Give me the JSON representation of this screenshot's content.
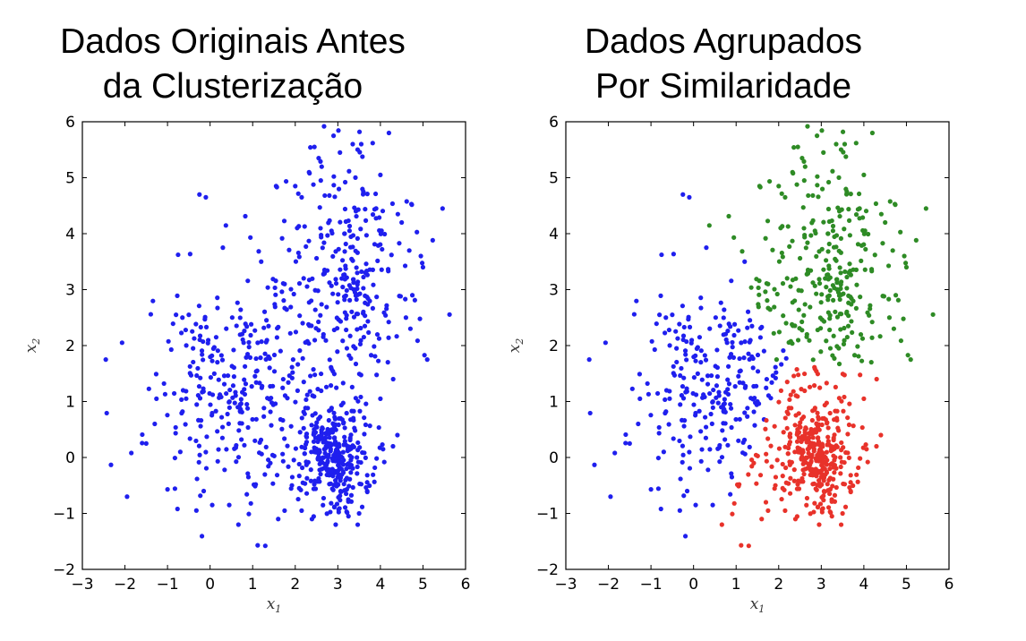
{
  "chart_data": [
    {
      "type": "scatter",
      "title": "Dados Originais Antes da Clusterização",
      "title_lines": [
        "Dados Originais Antes",
        "da Clusterização"
      ],
      "xlabel": "x",
      "xlabel_sub": "1",
      "ylabel": "x",
      "ylabel_sub": "2",
      "xlim": [
        -3,
        6
      ],
      "ylim": [
        -2,
        6
      ],
      "xticks": [
        -3,
        -2,
        -1,
        0,
        1,
        2,
        3,
        4,
        5,
        6
      ],
      "xtick_labels": [
        "−3",
        "−2",
        "−1",
        "0",
        "1",
        "2",
        "3",
        "4",
        "5",
        "6"
      ],
      "yticks": [
        -2,
        -1,
        0,
        1,
        2,
        3,
        4,
        5,
        6
      ],
      "ytick_labels": [
        "−2",
        "−1",
        "0",
        "1",
        "2",
        "3",
        "4",
        "5",
        "6"
      ],
      "grid": false,
      "point_color": "#1f1fee",
      "approx_point_count": 900,
      "series": [
        {
          "color": "#1f1fee",
          "points": [
            [
              -2.45,
              1.75
            ],
            [
              -1.95,
              -0.7
            ],
            [
              -1.85,
              0.08
            ],
            [
              -1.5,
              0.25
            ],
            [
              -1.0,
              -0.57
            ],
            [
              -0.8,
              2.55
            ],
            [
              -0.65,
              2.5
            ],
            [
              -0.5,
              2.55
            ],
            [
              -0.25,
              4.7
            ],
            [
              -0.1,
              4.65
            ],
            [
              0.3,
              3.75
            ],
            [
              1.2,
              3.5
            ],
            [
              1.55,
              4.85
            ],
            [
              2.0,
              4.85
            ],
            [
              2.45,
              5.55
            ],
            [
              2.55,
              5.35
            ],
            [
              2.9,
              5.75
            ],
            [
              3.35,
              5.6
            ],
            [
              3.55,
              5.6
            ],
            [
              3.6,
              4.75
            ],
            [
              4.0,
              5.05
            ],
            [
              4.2,
              5.8
            ],
            [
              4.5,
              4.2
            ],
            [
              4.95,
              3.6
            ],
            [
              5.0,
              3.4
            ],
            [
              5.1,
              1.75
            ],
            [
              4.6,
              2.5
            ],
            [
              4.75,
              2.9
            ],
            [
              4.4,
              0.4
            ],
            [
              1.6,
              -1.1
            ],
            [
              1.75,
              -0.95
            ],
            [
              2.95,
              -1.2
            ],
            [
              3.25,
              -1.05
            ],
            [
              3.5,
              -1.0
            ],
            [
              2.15,
              -0.95
            ],
            [
              0.45,
              -0.85
            ],
            [
              0.05,
              -0.85
            ],
            [
              -0.15,
              -0.6
            ],
            [
              0.9,
              -0.35
            ],
            [
              4.3,
              1.4
            ],
            [
              1.95,
              1.75
            ],
            [
              2.2,
              1.35
            ],
            [
              4.0,
              1.05
            ],
            [
              -0.7,
              0.1
            ],
            [
              -1.3,
              0.6
            ],
            [
              -0.4,
              1.95
            ],
            [
              1.75,
              3.1
            ],
            [
              2.6,
              4.95
            ],
            [
              3.05,
              5.45
            ],
            [
              3.9,
              4.45
            ]
          ]
        }
      ]
    },
    {
      "type": "scatter",
      "title": "Dados Agrupados Por Similaridade",
      "title_lines": [
        "Dados Agrupados",
        "Por Similaridade"
      ],
      "xlabel": "x",
      "xlabel_sub": "1",
      "ylabel": "x",
      "ylabel_sub": "2",
      "xlim": [
        -3,
        6
      ],
      "ylim": [
        -2,
        6
      ],
      "xticks": [
        -3,
        -2,
        -1,
        0,
        1,
        2,
        3,
        4,
        5,
        6
      ],
      "xtick_labels": [
        "−3",
        "−2",
        "−1",
        "0",
        "1",
        "2",
        "3",
        "4",
        "5",
        "6"
      ],
      "yticks": [
        -2,
        -1,
        0,
        1,
        2,
        3,
        4,
        5,
        6
      ],
      "ytick_labels": [
        "−2",
        "−1",
        "0",
        "1",
        "2",
        "3",
        "4",
        "5",
        "6"
      ],
      "grid": false,
      "clusters": [
        {
          "color": "#1f1fee",
          "center": [
            0.5,
            1.2
          ],
          "approx_count": 300,
          "points": [
            [
              -2.45,
              1.75
            ],
            [
              -1.95,
              -0.7
            ],
            [
              -1.85,
              0.08
            ],
            [
              -1.5,
              0.25
            ],
            [
              -1.0,
              -0.57
            ],
            [
              -0.8,
              2.55
            ],
            [
              -0.65,
              2.5
            ],
            [
              -0.5,
              2.55
            ],
            [
              -0.25,
              4.7
            ],
            [
              -0.1,
              4.65
            ],
            [
              0.3,
              3.75
            ],
            [
              1.2,
              3.5
            ],
            [
              0.45,
              -0.85
            ],
            [
              0.05,
              -0.85
            ],
            [
              -0.15,
              -0.6
            ],
            [
              0.9,
              -0.35
            ],
            [
              -0.7,
              0.1
            ],
            [
              -1.3,
              0.6
            ],
            [
              -0.4,
              1.95
            ],
            [
              1.5,
              1.0
            ],
            [
              1.2,
              0.8
            ]
          ]
        },
        {
          "color": "#2e8b25",
          "center": [
            3.3,
            3.2
          ],
          "approx_count": 300,
          "points": [
            [
              1.55,
              4.85
            ],
            [
              2.0,
              4.85
            ],
            [
              2.45,
              5.55
            ],
            [
              2.55,
              5.35
            ],
            [
              2.9,
              5.75
            ],
            [
              3.35,
              5.6
            ],
            [
              3.55,
              5.6
            ],
            [
              3.6,
              4.75
            ],
            [
              4.0,
              5.05
            ],
            [
              4.2,
              5.8
            ],
            [
              4.5,
              4.2
            ],
            [
              4.95,
              3.6
            ],
            [
              5.0,
              3.4
            ],
            [
              5.1,
              1.75
            ],
            [
              4.6,
              2.5
            ],
            [
              4.75,
              2.9
            ],
            [
              1.75,
              3.1
            ],
            [
              2.6,
              4.95
            ],
            [
              3.05,
              5.45
            ],
            [
              3.9,
              4.45
            ],
            [
              1.95,
              1.75
            ]
          ]
        },
        {
          "color": "#e8322a",
          "center": [
            2.9,
            0.1
          ],
          "approx_count": 300,
          "points": [
            [
              1.6,
              -1.1
            ],
            [
              1.75,
              -0.95
            ],
            [
              2.95,
              -1.2
            ],
            [
              3.25,
              -1.05
            ],
            [
              3.5,
              -1.0
            ],
            [
              2.15,
              -0.95
            ],
            [
              4.4,
              0.4
            ],
            [
              4.3,
              1.4
            ],
            [
              2.2,
              1.35
            ],
            [
              4.0,
              1.05
            ],
            [
              1.7,
              -0.8
            ]
          ]
        }
      ]
    }
  ]
}
